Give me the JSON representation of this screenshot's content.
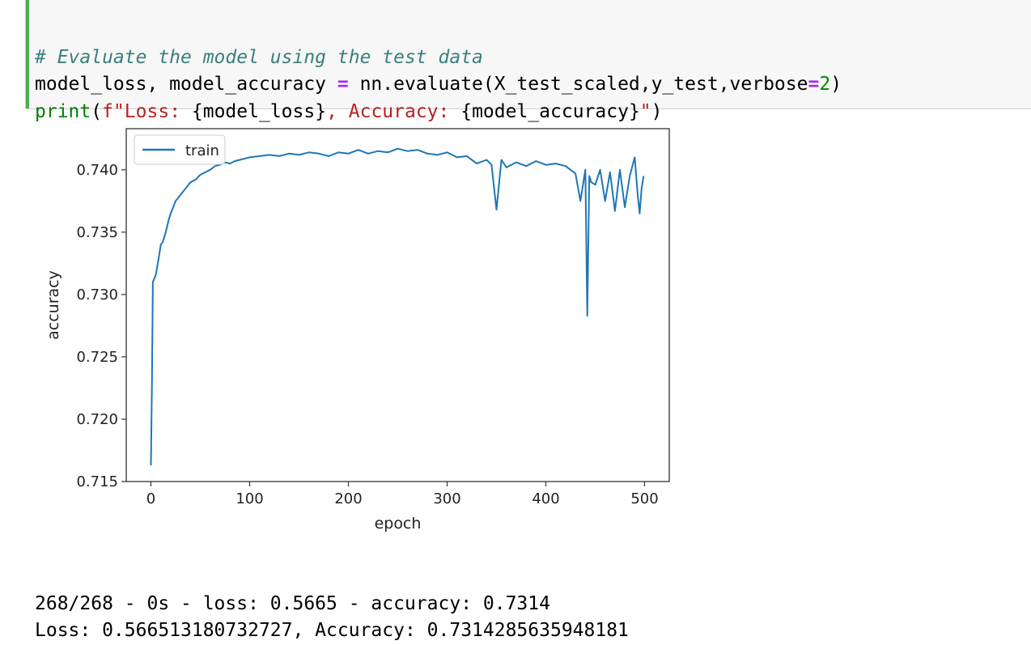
{
  "code": {
    "comment": "# Evaluate the model using the test data",
    "line2": {
      "lhs": "model_loss, model_accuracy ",
      "op": "=",
      "call": " nn.evaluate(X_test_scaled,y_test,verbose",
      "op2": "=",
      "num": "2",
      "close": ")"
    },
    "line3": {
      "builtin": "print",
      "open": "(",
      "str1": "f\"Loss: ",
      "var1": "{model_loss}",
      "str2": ", Accuracy: ",
      "var2": "{model_accuracy}",
      "str3": "\"",
      "close": ")"
    }
  },
  "output": {
    "line1": "268/268 - 0s - loss: 0.5665 - accuracy: 0.7314",
    "line2": "Loss: 0.566513180732727, Accuracy: 0.7314285635948181"
  },
  "chart_data": {
    "type": "line",
    "title": "",
    "xlabel": "epoch",
    "ylabel": "accuracy",
    "xlim": [
      -25,
      525
    ],
    "ylim": [
      0.715,
      0.7433
    ],
    "xticks": [
      0,
      100,
      200,
      300,
      400,
      500
    ],
    "xtick_labels": [
      "0",
      "100",
      "200",
      "300",
      "400",
      "500"
    ],
    "yticks": [
      0.715,
      0.72,
      0.725,
      0.73,
      0.735,
      0.74
    ],
    "ytick_labels": [
      "0.715",
      "0.720",
      "0.725",
      "0.730",
      "0.735",
      "0.740"
    ],
    "legend": {
      "placement": "top-left",
      "entries": [
        "train"
      ]
    },
    "grid": false,
    "line_color": "#1f77b4",
    "series": [
      {
        "name": "train",
        "x": [
          0,
          1,
          2,
          3,
          5,
          8,
          10,
          12,
          15,
          18,
          20,
          25,
          30,
          35,
          40,
          45,
          50,
          55,
          60,
          65,
          70,
          75,
          80,
          85,
          90,
          95,
          100,
          110,
          120,
          130,
          140,
          150,
          160,
          170,
          180,
          190,
          200,
          210,
          220,
          230,
          240,
          250,
          260,
          270,
          280,
          290,
          300,
          310,
          320,
          330,
          340,
          345,
          350,
          355,
          360,
          370,
          380,
          390,
          400,
          410,
          420,
          430,
          435,
          440,
          442,
          444,
          446,
          450,
          455,
          460,
          465,
          470,
          475,
          480,
          485,
          490,
          493,
          495,
          497,
          499
        ],
        "values": [
          0.7163,
          0.7225,
          0.731,
          0.7312,
          0.7316,
          0.733,
          0.734,
          0.7342,
          0.735,
          0.736,
          0.7365,
          0.7375,
          0.738,
          0.7385,
          0.739,
          0.7392,
          0.7396,
          0.7398,
          0.74,
          0.7403,
          0.7404,
          0.7406,
          0.7405,
          0.7407,
          0.7408,
          0.7409,
          0.741,
          0.7411,
          0.7412,
          0.7411,
          0.7413,
          0.7412,
          0.7414,
          0.7413,
          0.7411,
          0.7414,
          0.7413,
          0.7416,
          0.7413,
          0.7415,
          0.7414,
          0.7417,
          0.7415,
          0.7416,
          0.7413,
          0.7412,
          0.7414,
          0.741,
          0.7411,
          0.7405,
          0.7408,
          0.7404,
          0.7368,
          0.7408,
          0.7402,
          0.7406,
          0.7403,
          0.7407,
          0.7404,
          0.7405,
          0.7403,
          0.7397,
          0.7375,
          0.74,
          0.7283,
          0.7395,
          0.739,
          0.7388,
          0.74,
          0.7375,
          0.7398,
          0.7367,
          0.74,
          0.737,
          0.7395,
          0.741,
          0.738,
          0.7365,
          0.7385,
          0.7395
        ]
      }
    ]
  }
}
